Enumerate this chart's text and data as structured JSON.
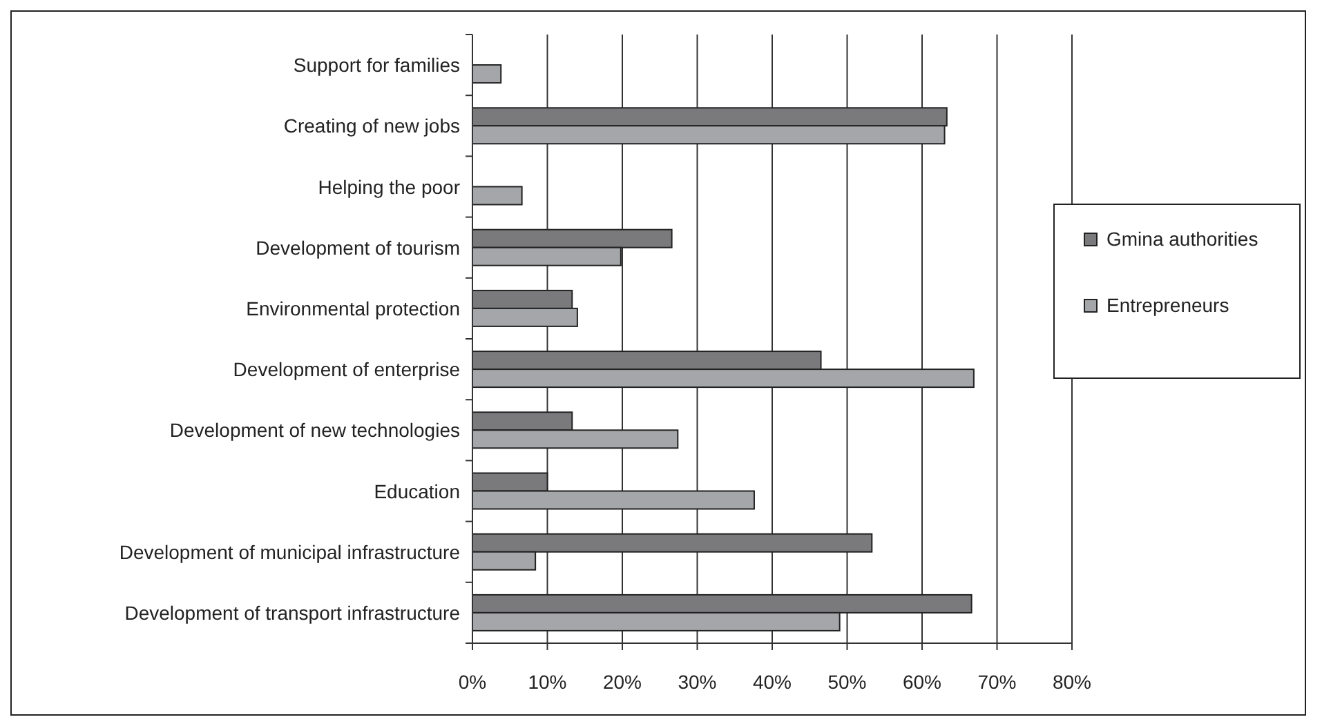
{
  "chart_data": {
    "type": "bar",
    "orientation": "horizontal",
    "categories": [
      "Support for families",
      "Creating of new jobs",
      "Helping the poor",
      "Development of tourism",
      "Environmental protection",
      "Development of enterprise",
      "Development of new technologies",
      "Education",
      "Development of municipal infrastructure",
      "Development of transport infrastructure"
    ],
    "series": [
      {
        "name": "Gmina authorities",
        "color": "#7a7a7d",
        "values": [
          null,
          63.3,
          null,
          26.6,
          13.3,
          46.5,
          13.3,
          10.0,
          53.3,
          66.6
        ]
      },
      {
        "name": "Entrepreneurs",
        "color": "#a5a6a9",
        "values": [
          3.8,
          63.0,
          6.6,
          19.8,
          14.0,
          66.9,
          27.4,
          37.6,
          8.4,
          49.0
        ]
      }
    ],
    "xlim": [
      0,
      80
    ],
    "xticks": [
      {
        "value": 0,
        "label": "0%"
      },
      {
        "value": 10,
        "label": "10%"
      },
      {
        "value": 20,
        "label": "20%"
      },
      {
        "value": 30,
        "label": "30%"
      },
      {
        "value": 40,
        "label": "40%"
      },
      {
        "value": 50,
        "label": "50%"
      },
      {
        "value": 60,
        "label": "60%"
      },
      {
        "value": 70,
        "label": "70%"
      },
      {
        "value": 80,
        "label": "80%"
      }
    ],
    "grid": "x",
    "legend": "right"
  }
}
